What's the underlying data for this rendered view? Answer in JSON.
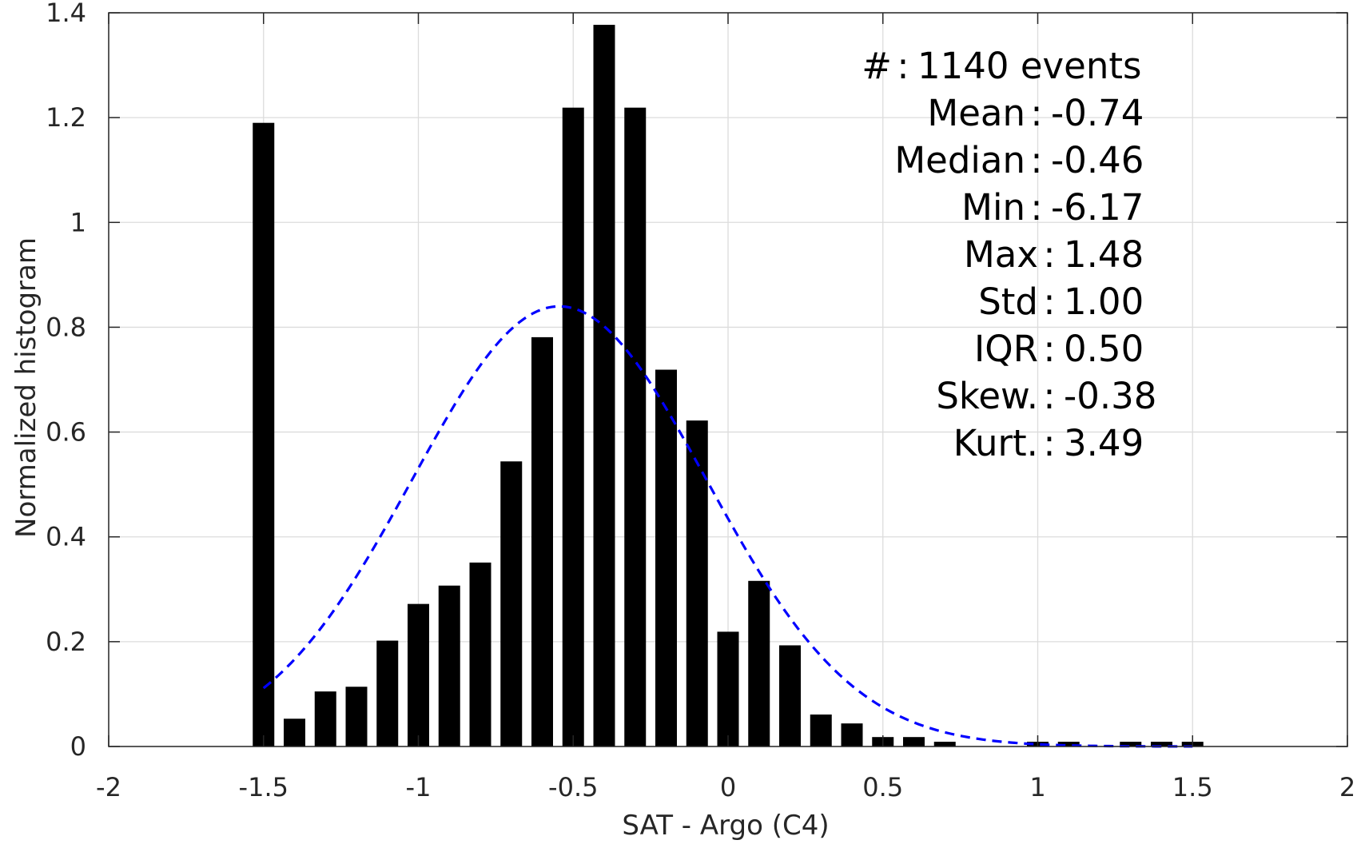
{
  "chart_data": {
    "type": "bar",
    "xlabel": "SAT - Argo (C4)",
    "ylabel": "Normalized histogram",
    "xlim": [
      -2,
      2
    ],
    "ylim": [
      0,
      1.4
    ],
    "grid": true,
    "xticks": [
      -2,
      -1.5,
      -1,
      -0.5,
      0,
      0.5,
      1,
      1.5,
      2
    ],
    "xtick_labels": [
      "-2",
      "-1.5",
      "-1",
      "-0.5",
      "0",
      "0.5",
      "1",
      "1.5",
      "2"
    ],
    "yticks": [
      0,
      0.2,
      0.4,
      0.6,
      0.8,
      1,
      1.2,
      1.4
    ],
    "ytick_labels": [
      "0",
      "0.2",
      "0.4",
      "0.6",
      "0.8",
      "1",
      "1.2",
      "1.4"
    ],
    "bar_color": "#000000",
    "bars": {
      "x": [
        -1.5,
        -1.4,
        -1.3,
        -1.2,
        -1.1,
        -1.0,
        -0.9,
        -0.8,
        -0.7,
        -0.6,
        -0.5,
        -0.4,
        -0.3,
        -0.2,
        -0.1,
        0.0,
        0.1,
        0.2,
        0.3,
        0.4,
        0.5,
        0.6,
        0.7,
        0.8,
        0.9,
        1.0,
        1.1,
        1.2,
        1.3,
        1.4,
        1.5
      ],
      "values": [
        1.19,
        0.053,
        0.105,
        0.114,
        0.202,
        0.272,
        0.307,
        0.351,
        0.544,
        0.781,
        1.219,
        1.377,
        1.219,
        0.719,
        0.622,
        0.219,
        0.316,
        0.193,
        0.061,
        0.044,
        0.018,
        0.018,
        0.009,
        0.0,
        0.0,
        0.009,
        0.009,
        0.0,
        0.009,
        0.009,
        0.009
      ]
    },
    "fit_curve": {
      "style": "dashed",
      "color": "#0000ff",
      "mean": -0.545,
      "std": 0.475,
      "x_range": [
        -1.5,
        1.5
      ]
    },
    "stats": [
      {
        "label": "#",
        "sep": ":",
        "value": "1140 events"
      },
      {
        "label": "Mean",
        "sep": ":",
        "value": "-0.74"
      },
      {
        "label": "Median",
        "sep": ":",
        "value": "-0.46"
      },
      {
        "label": "Min",
        "sep": ":",
        "value": "-6.17"
      },
      {
        "label": "Max",
        "sep": ":",
        "value": "1.48"
      },
      {
        "label": "Std",
        "sep": ":",
        "value": "1.00"
      },
      {
        "label": "IQR",
        "sep": ":",
        "value": "0.50"
      },
      {
        "label": "Skew.",
        "sep": ":",
        "value": "-0.38"
      },
      {
        "label": "Kurt.",
        "sep": ":",
        "value": "3.49"
      }
    ]
  }
}
